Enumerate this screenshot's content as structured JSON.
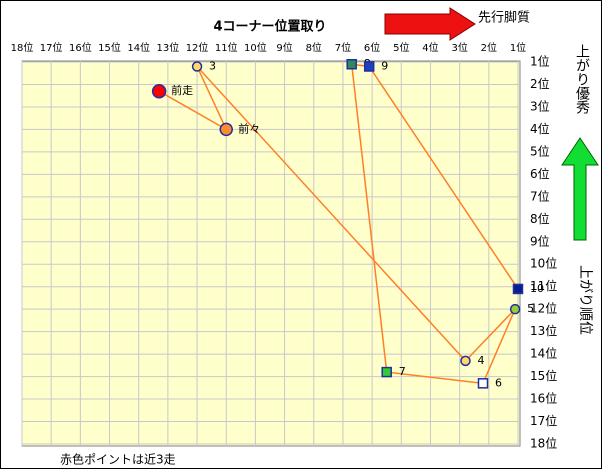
{
  "chart_data": {
    "type": "scatter",
    "title": "4コーナー位置取り",
    "ylabel": "上がり順位",
    "annotations": [
      "先行脚質",
      "上がり優秀",
      "赤色ポイントは近3走"
    ],
    "point_labels": [
      "前走",
      "前々",
      "3",
      "4",
      "5",
      "6",
      "7",
      "8",
      "9",
      "10"
    ],
    "x": [
      13.3,
      11,
      12,
      2.8,
      1.1,
      2.2,
      5.5,
      6.7,
      6.1,
      1
    ],
    "y": [
      2.3,
      4,
      1.2,
      14.3,
      12,
      15.3,
      14.8,
      1.1,
      1.2,
      11.1
    ],
    "colors": [
      "#ff0000",
      "#ff8c2a",
      "#ffd966",
      "#ffd966",
      "#9acd32",
      "#ffffff",
      "#33cc33",
      "#2e8b57",
      "#1f3fbf",
      "#0a1f8f"
    ],
    "shapes": [
      "circle",
      "circle",
      "circle",
      "circle",
      "circle",
      "square",
      "square",
      "square",
      "square",
      "square"
    ],
    "line_color": "#ff7f27",
    "xlim": [
      18,
      1
    ],
    "ylim": [
      1,
      18
    ],
    "xticks": [
      {
        "value": 18,
        "label": "18位"
      },
      {
        "value": 17,
        "label": "17位"
      },
      {
        "value": 16,
        "label": "16位"
      },
      {
        "value": 15,
        "label": "15位"
      },
      {
        "value": 14,
        "label": "14位"
      },
      {
        "value": 13,
        "label": "13位"
      },
      {
        "value": 12,
        "label": "12位"
      },
      {
        "value": 11,
        "label": "11位"
      },
      {
        "value": 10,
        "label": "10位"
      },
      {
        "value": 9,
        "label": "9位"
      },
      {
        "value": 8,
        "label": "8位"
      },
      {
        "value": 7,
        "label": "7位"
      },
      {
        "value": 6,
        "label": "6位"
      },
      {
        "value": 5,
        "label": "5位"
      },
      {
        "value": 4,
        "label": "4位"
      },
      {
        "value": 3,
        "label": "3位"
      },
      {
        "value": 2,
        "label": "2位"
      },
      {
        "value": 1,
        "label": "1位"
      }
    ],
    "yticks": [
      {
        "value": 1,
        "label": "1位"
      },
      {
        "value": 2,
        "label": "2位"
      },
      {
        "value": 3,
        "label": "3位"
      },
      {
        "value": 4,
        "label": "4位"
      },
      {
        "value": 5,
        "label": "5位"
      },
      {
        "value": 6,
        "label": "6位"
      },
      {
        "value": 7,
        "label": "7位"
      },
      {
        "value": 8,
        "label": "8位"
      },
      {
        "value": 9,
        "label": "9位"
      },
      {
        "value": 10,
        "label": "10位"
      },
      {
        "value": 11,
        "label": "11位"
      },
      {
        "value": 12,
        "label": "12位"
      },
      {
        "value": 13,
        "label": "13位"
      },
      {
        "value": 14,
        "label": "14位"
      },
      {
        "value": 15,
        "label": "15位"
      },
      {
        "value": 16,
        "label": "16位"
      },
      {
        "value": 17,
        "label": "17位"
      },
      {
        "value": 18,
        "label": "18位"
      }
    ],
    "grid": true
  }
}
